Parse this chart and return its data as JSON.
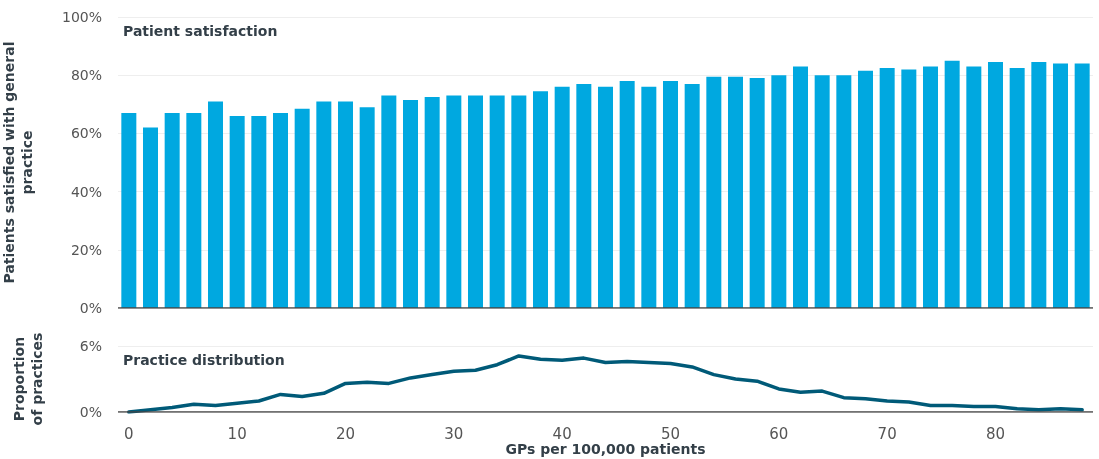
{
  "chart_data": [
    {
      "type": "bar",
      "title": "Patient satisfaction",
      "ylabel": "Patients satisfied with general practice",
      "x": [
        0,
        2,
        4,
        6,
        8,
        10,
        12,
        14,
        16,
        18,
        20,
        22,
        24,
        26,
        28,
        30,
        32,
        34,
        36,
        38,
        40,
        42,
        44,
        46,
        48,
        50,
        52,
        54,
        56,
        58,
        60,
        62,
        64,
        66,
        68,
        70,
        72,
        74,
        76,
        78,
        80,
        82,
        84,
        86,
        88
      ],
      "values": [
        67,
        62,
        67,
        67,
        71,
        66,
        66,
        67,
        68.5,
        71,
        71,
        69,
        73,
        71.5,
        72.5,
        73,
        73,
        73,
        73,
        74.5,
        76,
        77,
        76,
        78,
        76,
        78,
        77,
        79.5,
        79.5,
        79,
        80,
        83,
        80,
        80,
        81.5,
        82.5,
        82,
        83,
        85,
        83,
        84.5,
        82.5,
        84.5,
        84,
        84
      ],
      "color": "#00a8e0",
      "xlim": [
        -1,
        89
      ],
      "xticks": [
        0,
        10,
        20,
        30,
        40,
        50,
        60,
        70,
        80
      ],
      "ylim": [
        0,
        100
      ],
      "yticks": [
        {
          "value": 0,
          "label": "0%"
        },
        {
          "value": 20,
          "label": "20%"
        },
        {
          "value": 40,
          "label": "40%"
        },
        {
          "value": 60,
          "label": "60%"
        },
        {
          "value": 80,
          "label": "80%"
        },
        {
          "value": 100,
          "label": "100%"
        }
      ],
      "grid": "y",
      "tick_labels": "y"
    },
    {
      "type": "line",
      "title": "Practice distribution",
      "ylabel": "Proportion of practices",
      "xlabel": "GPs per 100,000 patients",
      "x": [
        0,
        2,
        4,
        6,
        8,
        10,
        12,
        14,
        16,
        18,
        20,
        22,
        24,
        26,
        28,
        30,
        32,
        34,
        36,
        38,
        40,
        42,
        44,
        46,
        48,
        50,
        52,
        54,
        56,
        58,
        60,
        62,
        64,
        66,
        68,
        70,
        72,
        74,
        76,
        78,
        80,
        82,
        84,
        86,
        88
      ],
      "values": [
        0,
        0.2,
        0.4,
        0.7,
        0.6,
        0.8,
        1.0,
        1.6,
        1.4,
        1.7,
        2.6,
        2.7,
        2.6,
        3.1,
        3.4,
        3.7,
        3.8,
        4.3,
        5.1,
        4.8,
        4.7,
        4.9,
        4.5,
        4.6,
        4.5,
        4.4,
        4.1,
        3.4,
        3.0,
        2.8,
        2.1,
        1.8,
        1.9,
        1.3,
        1.2,
        1.0,
        0.9,
        0.6,
        0.6,
        0.5,
        0.5,
        0.3,
        0.2,
        0.3,
        0.2
      ],
      "color": "#005a78",
      "xlim": [
        -1,
        89
      ],
      "xticks": [
        0,
        10,
        20,
        30,
        40,
        50,
        60,
        70,
        80
      ],
      "ylim": [
        0,
        6
      ],
      "yticks": [
        {
          "value": 0,
          "label": "0%"
        },
        {
          "value": 6,
          "label": "6%"
        }
      ],
      "grid": "y",
      "marker": "none",
      "line_style": "solid"
    }
  ]
}
